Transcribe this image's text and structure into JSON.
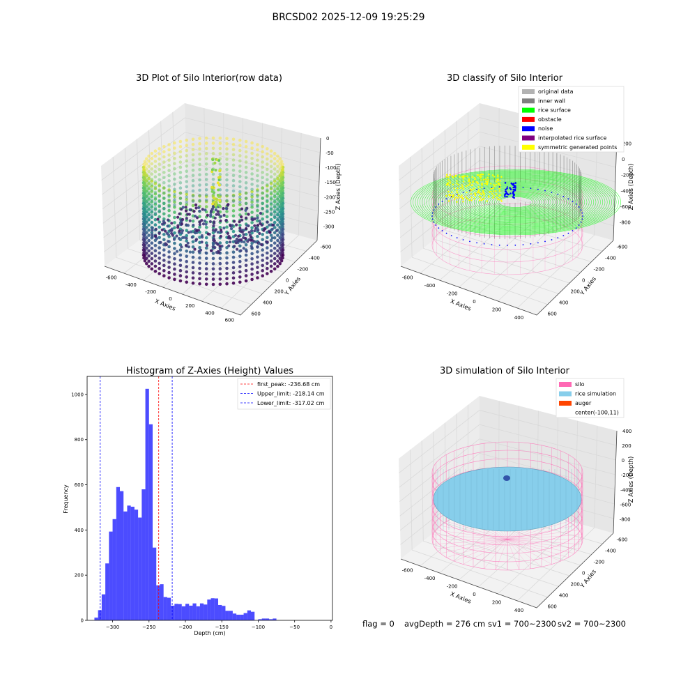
{
  "figure": {
    "suptitle": "BRCSD02 2025-12-09 19:25:29",
    "footer": {
      "flag": "flag = 0",
      "avg_depth": "avgDepth = 276 cm",
      "sv1": "sv1 = 700~2300",
      "sv2": "sv2 = 700~2300"
    }
  },
  "chart_data": [
    {
      "type": "scatter",
      "projection": "3d",
      "title": "3D Plot of Silo Interior(row data)",
      "xlabel": "X Axies",
      "ylabel": "Y Axies",
      "zlabel": "Z Axies (Depth)",
      "x_ticks": [
        "-600",
        "-400",
        "-200",
        "0",
        "200",
        "400",
        "600"
      ],
      "y_ticks": [
        "-600",
        "-400",
        "-200",
        "0",
        "200",
        "400",
        "600"
      ],
      "z_ticks": [
        "0",
        "-50",
        "-100",
        "-150",
        "-200",
        "-250",
        "-300"
      ],
      "colormap": "viridis",
      "radius": 620,
      "depth_range": [
        -330,
        -90
      ]
    },
    {
      "type": "scatter",
      "projection": "3d",
      "title": "3D classify of Silo Interior",
      "xlabel": "X Axies",
      "ylabel": "Y Axies",
      "zlabel": "Z Axies (Depth)",
      "x_ticks": [
        "-600",
        "-400",
        "-200",
        "0",
        "200",
        "400"
      ],
      "y_ticks": [
        "-600",
        "-400",
        "-200",
        "0",
        "200",
        "400",
        "600"
      ],
      "z_ticks": [
        "200",
        "0",
        "-200",
        "-400",
        "-600",
        "-800"
      ],
      "legend_position": "top-right",
      "legend": [
        {
          "label": "original data",
          "color": "#b3b3b3"
        },
        {
          "label": "inner wall",
          "color": "#808080"
        },
        {
          "label": "rice surface",
          "color": "#00ff00"
        },
        {
          "label": "obstacle",
          "color": "#ff0000"
        },
        {
          "label": "noise",
          "color": "#0000ff"
        },
        {
          "label": "interpolated rice surface",
          "color": "#800080"
        },
        {
          "label": "symmetric generated points",
          "color": "#ffff00"
        }
      ]
    },
    {
      "type": "bar",
      "subtype": "histogram",
      "title": "Histogram of Z-Axies (Height) Values",
      "xlabel": "Depth (cm)",
      "ylabel": "Frequency",
      "xlim": [
        -335,
        2
      ],
      "ylim": [
        0,
        1080
      ],
      "bin_width": 5,
      "x_ticks": [
        -300,
        -250,
        -200,
        -150,
        -100,
        -50,
        0
      ],
      "y_ticks": [
        0,
        200,
        400,
        600,
        800,
        1000
      ],
      "color": "#0000ff",
      "bins": [
        {
          "x0": -325,
          "count": 12
        },
        {
          "x0": -320,
          "count": 45
        },
        {
          "x0": -315,
          "count": 115
        },
        {
          "x0": -310,
          "count": 252
        },
        {
          "x0": -305,
          "count": 393
        },
        {
          "x0": -300,
          "count": 448
        },
        {
          "x0": -295,
          "count": 590
        },
        {
          "x0": -290,
          "count": 572
        },
        {
          "x0": -285,
          "count": 482
        },
        {
          "x0": -280,
          "count": 508
        },
        {
          "x0": -275,
          "count": 503
        },
        {
          "x0": -270,
          "count": 490
        },
        {
          "x0": -265,
          "count": 455
        },
        {
          "x0": -260,
          "count": 580
        },
        {
          "x0": -255,
          "count": 1025
        },
        {
          "x0": -250,
          "count": 868
        },
        {
          "x0": -245,
          "count": 322
        },
        {
          "x0": -240,
          "count": 155
        },
        {
          "x0": -235,
          "count": 160
        },
        {
          "x0": -230,
          "count": 103
        },
        {
          "x0": -225,
          "count": 100
        },
        {
          "x0": -220,
          "count": 65
        },
        {
          "x0": -215,
          "count": 73
        },
        {
          "x0": -210,
          "count": 72
        },
        {
          "x0": -205,
          "count": 62
        },
        {
          "x0": -200,
          "count": 73
        },
        {
          "x0": -195,
          "count": 65
        },
        {
          "x0": -190,
          "count": 75
        },
        {
          "x0": -185,
          "count": 62
        },
        {
          "x0": -180,
          "count": 75
        },
        {
          "x0": -175,
          "count": 70
        },
        {
          "x0": -170,
          "count": 92
        },
        {
          "x0": -165,
          "count": 98
        },
        {
          "x0": -160,
          "count": 97
        },
        {
          "x0": -155,
          "count": 68
        },
        {
          "x0": -150,
          "count": 64
        },
        {
          "x0": -145,
          "count": 42
        },
        {
          "x0": -140,
          "count": 42
        },
        {
          "x0": -135,
          "count": 30
        },
        {
          "x0": -130,
          "count": 25
        },
        {
          "x0": -125,
          "count": 25
        },
        {
          "x0": -120,
          "count": 32
        },
        {
          "x0": -115,
          "count": 44
        },
        {
          "x0": -110,
          "count": 38
        },
        {
          "x0": -105,
          "count": 0
        },
        {
          "x0": -100,
          "count": 5
        },
        {
          "x0": -95,
          "count": 8
        },
        {
          "x0": -90,
          "count": 8
        },
        {
          "x0": -85,
          "count": 5
        },
        {
          "x0": -80,
          "count": 8
        }
      ],
      "vlines": [
        {
          "label": "first_peak: -236.68 cm",
          "value": -236.68,
          "color": "#ff0000"
        },
        {
          "label": "Upper_limit: -218.14 cm",
          "value": -218.14,
          "color": "#0000ff"
        },
        {
          "label": "Lower_limit: -317.02 cm",
          "value": -317.02,
          "color": "#0000ff"
        }
      ],
      "legend_position": "top-right"
    },
    {
      "type": "scatter",
      "projection": "3d",
      "title": "3D simulation of Silo Interior",
      "xlabel": "X Axies",
      "ylabel": "Y Axies",
      "zlabel": "Z Axies (Depth)",
      "x_ticks": [
        "-600",
        "-400",
        "-200",
        "0",
        "200",
        "400"
      ],
      "y_ticks": [
        "-600",
        "-400",
        "-200",
        "0",
        "200",
        "400",
        "600"
      ],
      "z_ticks": [
        "400",
        "200",
        "0",
        "-200",
        "-400",
        "-600",
        "-800"
      ],
      "legend_position": "top-right",
      "legend": [
        {
          "label": "silo",
          "color": "#ff69b4"
        },
        {
          "label": "rice simulation",
          "color": "#87ceeb"
        },
        {
          "label": "auger",
          "color": "#ff4500"
        },
        {
          "label": "center(-100,11)",
          "color": null
        }
      ]
    }
  ]
}
